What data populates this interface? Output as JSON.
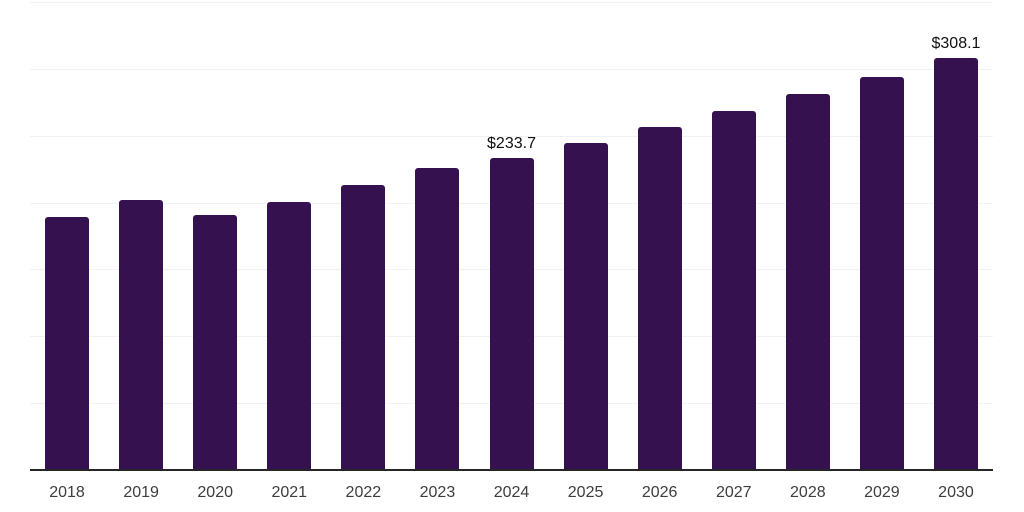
{
  "chart": {
    "background_color": "#ffffff",
    "bar_color": "#36114F",
    "grid_color": "#f1f1f1",
    "axis_color": "#262626",
    "tick_label_color": "#3d3d3d",
    "value_label_color": "#111111"
  },
  "chart_data": {
    "type": "bar",
    "title": "",
    "xlabel": "",
    "ylabel": "",
    "categories": [
      "2018",
      "2019",
      "2020",
      "2021",
      "2022",
      "2023",
      "2024",
      "2025",
      "2026",
      "2027",
      "2028",
      "2029",
      "2030"
    ],
    "values": [
      189.0,
      201.8,
      190.5,
      200.2,
      213.5,
      225.9,
      233.7,
      244.7,
      256.3,
      268.3,
      281.0,
      294.2,
      308.1
    ],
    "data_labels": [
      "",
      "",
      "",
      "",
      "",
      "",
      "$233.7",
      "",
      "",
      "",
      "",
      "",
      "$308.1"
    ],
    "ylim": [
      0,
      350
    ],
    "grid": true,
    "grid_step": 50,
    "y_tick_labels_visible": false,
    "legend": false,
    "legend_position": "none"
  }
}
